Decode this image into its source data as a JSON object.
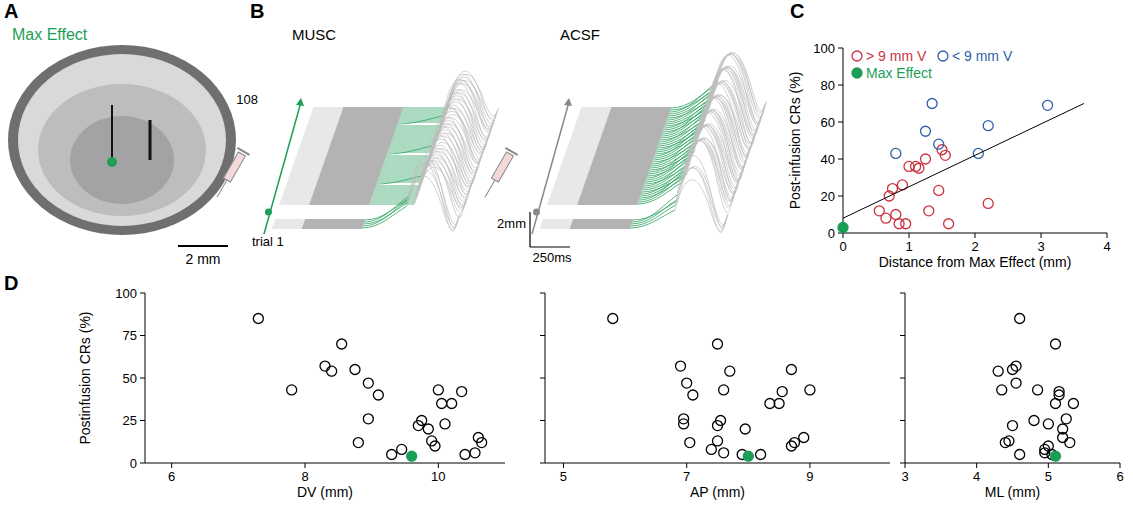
{
  "panel_labels": [
    "A",
    "B",
    "C",
    "D"
  ],
  "panel_a": {
    "label": "Max Effect",
    "scale_bar": "2 mm"
  },
  "panel_b": {
    "titles": [
      "MUSC",
      "ACSF"
    ],
    "trial_last": 108,
    "trial_first": "trial 1",
    "scale_y": "2mm",
    "scale_x": "250ms"
  },
  "chart_data": [
    {
      "type": "scatter",
      "x_label": "Distance from Max Effect (mm)",
      "y_label": "Post-infusion CRs (%)",
      "xlim": [
        0,
        4
      ],
      "xticks": [
        0,
        1,
        2,
        3,
        4
      ],
      "ylim": [
        0,
        100
      ],
      "yticks": [
        0,
        20,
        40,
        60,
        80,
        100
      ],
      "legend": "top-left",
      "series": [
        {
          "name": "> 9 mm V",
          "color": "#cc3340",
          "marker": "open-circle",
          "x": [
            0.55,
            0.65,
            0.7,
            0.75,
            0.8,
            0.85,
            0.9,
            0.95,
            1.0,
            1.1,
            1.15,
            1.25,
            1.3,
            1.45,
            1.5,
            1.55,
            1.6,
            2.2
          ],
          "values": [
            12,
            8,
            20,
            24,
            10,
            5,
            26,
            5,
            36,
            36,
            35,
            40,
            12,
            23,
            45,
            42,
            5,
            16
          ]
        },
        {
          "name": "< 9 mm V",
          "color": "#2f5fa8",
          "marker": "open-circle",
          "x": [
            0.8,
            1.25,
            1.35,
            1.45,
            2.05,
            2.2,
            3.1
          ],
          "values": [
            43,
            55,
            70,
            48,
            43,
            58,
            69
          ]
        },
        {
          "name": "Max Effect",
          "color": "#1b9e57",
          "marker": "filled-circle",
          "x": [
            0
          ],
          "values": [
            3
          ]
        },
        {
          "type": "line",
          "color": "#000000",
          "x": [
            0,
            3.65
          ],
          "values": [
            8,
            70
          ]
        }
      ]
    },
    {
      "type": "scatter",
      "x_label": "DV (mm)",
      "y_label": "Postinfusion CRs (%)",
      "xlim": [
        5.6,
        11
      ],
      "xticks": [
        6,
        8,
        10
      ],
      "ylim": [
        0,
        100
      ],
      "yticks": [
        0,
        25,
        50,
        75,
        100
      ],
      "series": [
        {
          "color": "#000000",
          "marker": "open-circle",
          "x": [
            7.3,
            7.8,
            8.3,
            8.4,
            8.55,
            8.75,
            8.95,
            9.1,
            8.95,
            8.8,
            9.3,
            9.45,
            9.7,
            9.85,
            10.0,
            10.05,
            10.1,
            10.2,
            10.35,
            10.4,
            10.55,
            10.6,
            10.65,
            9.95,
            9.9,
            9.75
          ],
          "values": [
            85,
            43,
            57,
            54,
            70,
            55,
            47,
            40,
            26,
            12,
            5,
            8,
            22,
            20,
            43,
            35,
            23,
            35,
            42,
            5,
            6,
            15,
            12,
            10,
            13,
            25
          ]
        },
        {
          "color": "#1b9e57",
          "marker": "filled-circle",
          "x": [
            9.6
          ],
          "values": [
            4
          ]
        }
      ]
    },
    {
      "type": "scatter",
      "x_label": "AP (mm)",
      "tick_labels": "x",
      "xlim": [
        4.7,
        10.3
      ],
      "xticks": [
        5,
        7,
        9
      ],
      "ylim": [
        0,
        100
      ],
      "yticks": [
        0,
        25,
        50,
        75,
        100
      ],
      "series": [
        {
          "color": "#000000",
          "marker": "open-circle",
          "x": [
            5.8,
            7.6,
            6.9,
            7.7,
            7.5,
            8.7,
            7.0,
            7.1,
            6.95,
            7.05,
            7.9,
            7.4,
            7.5,
            7.95,
            9.0,
            8.35,
            6.95,
            8.5,
            8.55,
            8.2,
            7.6,
            8.9,
            8.75,
            8.7,
            7.5,
            7.55
          ],
          "values": [
            85,
            43,
            57,
            54,
            70,
            55,
            47,
            40,
            26,
            12,
            5,
            8,
            22,
            20,
            43,
            35,
            23,
            35,
            42,
            5,
            6,
            15,
            12,
            10,
            13,
            25
          ]
        },
        {
          "color": "#1b9e57",
          "marker": "filled-circle",
          "x": [
            8.0
          ],
          "values": [
            4
          ]
        }
      ]
    },
    {
      "type": "scatter",
      "x_label": "ML (mm)",
      "tick_labels": "x",
      "xlim": [
        3,
        6
      ],
      "xticks": [
        3,
        4,
        5,
        6
      ],
      "ylim": [
        0,
        100
      ],
      "yticks": [
        0,
        25,
        50,
        75,
        100
      ],
      "series": [
        {
          "color": "#000000",
          "marker": "open-circle",
          "x": [
            4.6,
            4.35,
            4.55,
            4.3,
            5.1,
            4.5,
            4.55,
            5.15,
            5.25,
            4.4,
            4.6,
            4.95,
            4.5,
            5.2,
            4.85,
            5.1,
            5.0,
            5.35,
            5.15,
            5.05,
            4.95,
            5.2,
            5.3,
            5.0,
            4.45,
            4.8
          ],
          "values": [
            85,
            43,
            57,
            54,
            70,
            55,
            47,
            40,
            26,
            12,
            5,
            8,
            22,
            20,
            43,
            35,
            23,
            35,
            42,
            5,
            6,
            15,
            12,
            10,
            13,
            25
          ]
        },
        {
          "color": "#1b9e57",
          "marker": "filled-circle",
          "x": [
            5.1
          ],
          "values": [
            4
          ]
        }
      ]
    }
  ]
}
